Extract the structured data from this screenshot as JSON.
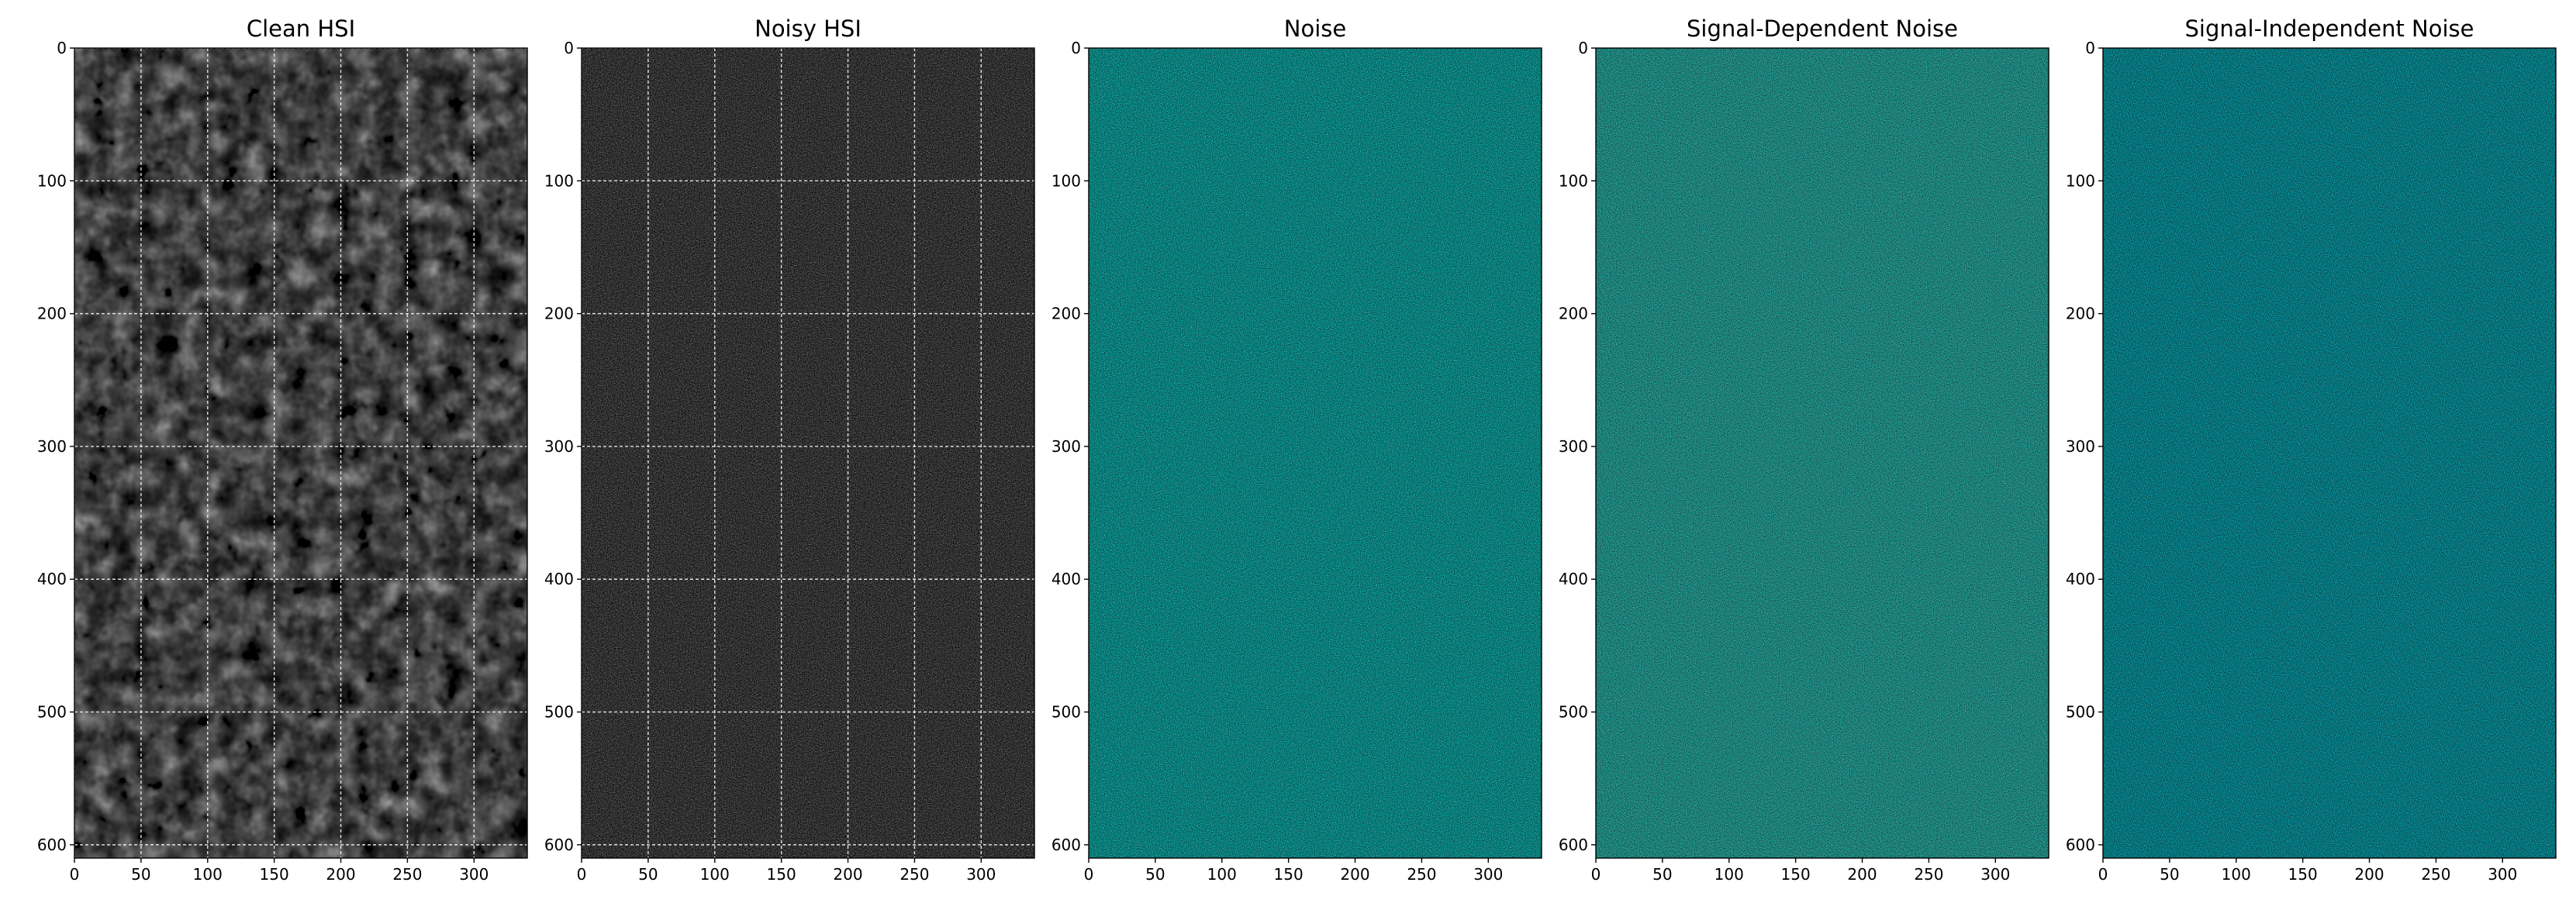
{
  "chart_data": [
    {
      "type": "heatmap",
      "title": "Clean HSI",
      "colormap": "gray",
      "xlim": [
        0,
        340
      ],
      "ylim": [
        610,
        0
      ],
      "xticks": [
        0,
        50,
        100,
        150,
        200,
        250,
        300
      ],
      "yticks": [
        0,
        100,
        200,
        300,
        400,
        500,
        600
      ],
      "grid": true
    },
    {
      "type": "heatmap",
      "title": "Noisy HSI",
      "colormap": "gray",
      "xlim": [
        0,
        340
      ],
      "ylim": [
        610,
        0
      ],
      "xticks": [
        0,
        50,
        100,
        150,
        200,
        250,
        300
      ],
      "yticks": [
        0,
        100,
        200,
        300,
        400,
        500,
        600
      ],
      "grid": true
    },
    {
      "type": "heatmap",
      "title": "Noise",
      "colormap": "jet",
      "xlim": [
        0,
        340
      ],
      "ylim": [
        610,
        0
      ],
      "xticks": [
        0,
        50,
        100,
        150,
        200,
        250,
        300
      ],
      "yticks": [
        0,
        100,
        200,
        300,
        400,
        500,
        600
      ],
      "grid": false
    },
    {
      "type": "heatmap",
      "title": "Signal-Dependent Noise",
      "colormap": "jet",
      "xlim": [
        0,
        340
      ],
      "ylim": [
        610,
        0
      ],
      "xticks": [
        0,
        50,
        100,
        150,
        200,
        250,
        300
      ],
      "yticks": [
        0,
        100,
        200,
        300,
        400,
        500,
        600
      ],
      "grid": false
    },
    {
      "type": "heatmap",
      "title": "Signal-Independent Noise",
      "colormap": "jet",
      "xlim": [
        0,
        340
      ],
      "ylim": [
        610,
        0
      ],
      "xticks": [
        0,
        50,
        100,
        150,
        200,
        250,
        300
      ],
      "yticks": [
        0,
        100,
        200,
        300,
        400,
        500,
        600
      ],
      "grid": false
    }
  ]
}
